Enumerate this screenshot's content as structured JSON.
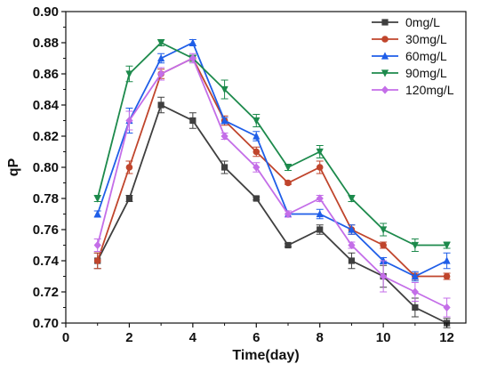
{
  "chart_data": {
    "type": "line",
    "xlabel": "Time(day)",
    "ylabel": "qP",
    "xlim": [
      0,
      12.6
    ],
    "ylim": [
      0.7,
      0.9
    ],
    "x_ticks": [
      0,
      2,
      4,
      6,
      8,
      10,
      12
    ],
    "y_ticks": [
      0.7,
      0.72,
      0.74,
      0.76,
      0.78,
      0.8,
      0.82,
      0.84,
      0.86,
      0.88,
      0.9
    ],
    "x_tick_labels": [
      "0",
      "2",
      "4",
      "6",
      "8",
      "10",
      "12"
    ],
    "y_tick_labels": [
      "0.70",
      "0.72",
      "0.74",
      "0.76",
      "0.78",
      "0.80",
      "0.82",
      "0.84",
      "0.86",
      "0.88",
      "0.90"
    ],
    "legend_position": "top-right",
    "grid": false,
    "x": [
      1,
      2,
      3,
      4,
      5,
      6,
      7,
      8,
      9,
      10,
      11,
      12
    ],
    "series": [
      {
        "name": "0mg/L",
        "color": "#3f3f3f",
        "marker": "square",
        "values": [
          0.74,
          0.78,
          0.84,
          0.83,
          0.8,
          0.78,
          0.75,
          0.76,
          0.74,
          0.73,
          0.71,
          0.7
        ],
        "errors": [
          0.005,
          0.002,
          0.005,
          0.005,
          0.004,
          0.001,
          0.001,
          0.003,
          0.005,
          0.007,
          0.006,
          0.003
        ]
      },
      {
        "name": "30mg/L",
        "color": "#c0452c",
        "marker": "circle",
        "values": [
          0.74,
          0.8,
          0.86,
          0.87,
          0.83,
          0.81,
          0.79,
          0.8,
          0.76,
          0.75,
          0.73,
          0.73
        ],
        "errors": [
          0.005,
          0.004,
          0.003,
          0.002,
          0.003,
          0.003,
          0.001,
          0.004,
          0.003,
          0.002,
          0.002,
          0.002
        ]
      },
      {
        "name": "60mg/L",
        "color": "#1f5ee8",
        "marker": "triangle-up",
        "values": [
          0.77,
          0.83,
          0.87,
          0.88,
          0.83,
          0.82,
          0.77,
          0.77,
          0.76,
          0.74,
          0.73,
          0.74
        ],
        "errors": [
          0.002,
          0.008,
          0.003,
          0.002,
          0.002,
          0.003,
          0.002,
          0.003,
          0.003,
          0.002,
          0.003,
          0.005
        ]
      },
      {
        "name": "90mg/L",
        "color": "#1d8a4c",
        "marker": "triangle-down",
        "values": [
          0.78,
          0.86,
          0.88,
          0.87,
          0.85,
          0.83,
          0.8,
          0.81,
          0.78,
          0.76,
          0.75,
          0.75
        ],
        "errors": [
          0.002,
          0.005,
          0.002,
          0.002,
          0.006,
          0.004,
          0.002,
          0.004,
          0.002,
          0.004,
          0.004,
          0.002
        ]
      },
      {
        "name": "120mg/L",
        "color": "#c46ee8",
        "marker": "diamond",
        "values": [
          0.75,
          0.83,
          0.86,
          0.87,
          0.82,
          0.8,
          0.77,
          0.78,
          0.75,
          0.73,
          0.72,
          0.71
        ],
        "errors": [
          0.004,
          0.006,
          0.004,
          0.003,
          0.002,
          0.003,
          0.002,
          0.002,
          0.002,
          0.01,
          0.006,
          0.006
        ]
      }
    ]
  }
}
